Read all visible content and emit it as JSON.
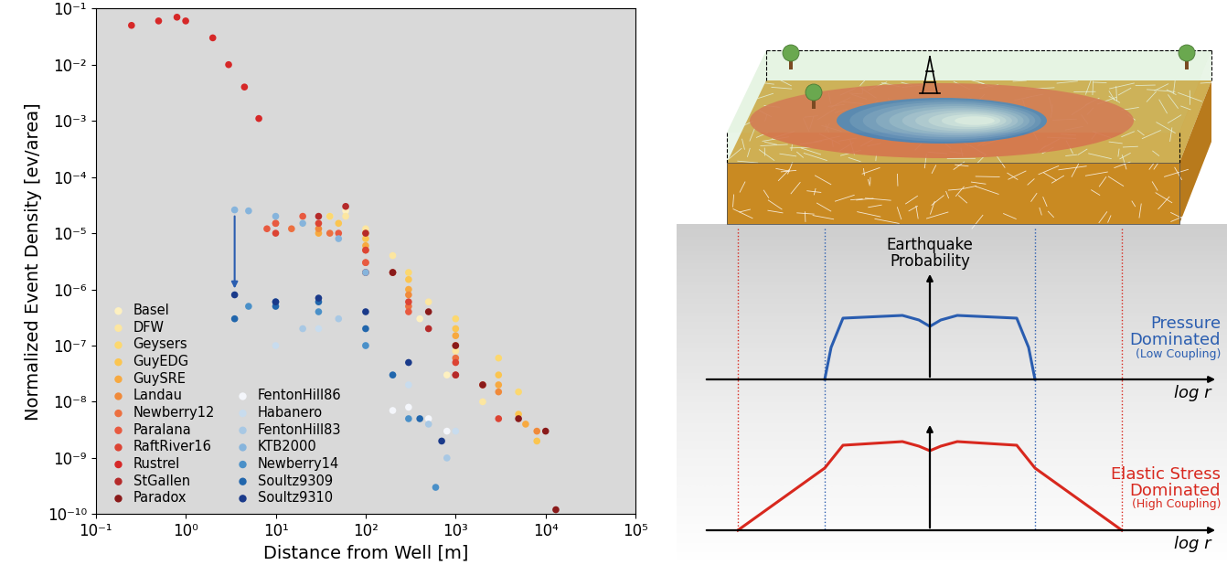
{
  "chart_data": {
    "type": "scatter",
    "x_label": "Distance from Well [m]",
    "y_label": "Normalized Event Density [ev/area]",
    "log": true,
    "xlim": [
      0.1,
      100000
    ],
    "ylim": [
      1e-10,
      0.1
    ],
    "xticks": [
      {
        "value": 0.1,
        "label": "10⁻¹"
      },
      {
        "value": 1,
        "label": "10⁰"
      },
      {
        "value": 10,
        "label": "10¹"
      },
      {
        "value": 100,
        "label": "10²"
      },
      {
        "value": 1000,
        "label": "10³"
      },
      {
        "value": 10000,
        "label": "10⁴"
      },
      {
        "value": 100000,
        "label": "10⁵"
      }
    ],
    "yticks": [
      {
        "value": 1e-10,
        "label": "10⁻¹⁰"
      },
      {
        "value": 1e-09,
        "label": "10⁻⁹"
      },
      {
        "value": 1e-08,
        "label": "10⁻⁸"
      },
      {
        "value": 1e-07,
        "label": "10⁻⁷"
      },
      {
        "value": 1e-06,
        "label": "10⁻⁶"
      },
      {
        "value": 1e-05,
        "label": "10⁻⁵"
      },
      {
        "value": 0.0001,
        "label": "10⁻⁴"
      },
      {
        "value": 0.001,
        "label": "10⁻³"
      },
      {
        "value": 0.01,
        "label": "10⁻²"
      },
      {
        "value": 0.1,
        "label": "10⁻¹"
      }
    ],
    "legend": "lower left",
    "marker": "circle",
    "series": [
      {
        "name": "Basel",
        "color": "#fdf0c0",
        "x": [
          20,
          40,
          60,
          100,
          200,
          400,
          800
        ],
        "y": [
          1.5e-05,
          2e-05,
          2.5e-05,
          1e-05,
          2e-06,
          3e-07,
          3e-08
        ]
      },
      {
        "name": "DFW",
        "color": "#fce6a0",
        "x": [
          30,
          60,
          100,
          200,
          500,
          1000,
          2000
        ],
        "y": [
          1e-05,
          2e-05,
          1.2e-05,
          4e-06,
          6e-07,
          8e-08,
          1e-08
        ]
      },
      {
        "name": "Geysers",
        "color": "#fcd870",
        "x": [
          40,
          100,
          300,
          1000,
          3000,
          5000
        ],
        "y": [
          2e-05,
          1e-05,
          2e-06,
          3e-07,
          6e-08,
          1.5e-08
        ]
      },
      {
        "name": "GuyEDG",
        "color": "#fbc550",
        "x": [
          50,
          100,
          300,
          1000,
          3000,
          5000,
          8000
        ],
        "y": [
          1.5e-05,
          8e-06,
          1.5e-06,
          2e-07,
          3e-08,
          6e-09,
          2e-09
        ]
      },
      {
        "name": "GuySRE",
        "color": "#f7a940",
        "x": [
          30,
          100,
          300,
          1000,
          3000,
          6000
        ],
        "y": [
          1e-05,
          6e-06,
          1e-06,
          1.5e-07,
          2e-08,
          4e-09
        ]
      },
      {
        "name": "Landau",
        "color": "#f08a3a",
        "x": [
          10,
          30,
          100,
          300,
          1000,
          3000,
          8000
        ],
        "y": [
          1.5e-05,
          1.2e-05,
          5e-06,
          8e-07,
          1e-07,
          1.5e-08,
          3e-09
        ]
      },
      {
        "name": "Newberry12",
        "color": "#ec7040",
        "x": [
          15,
          40,
          100,
          300,
          1000,
          2000
        ],
        "y": [
          1.2e-05,
          1e-05,
          3e-06,
          5e-07,
          6e-08,
          2e-08
        ]
      },
      {
        "name": "Paralana",
        "color": "#e85a40",
        "x": [
          8,
          10,
          20,
          50,
          100,
          300,
          1000
        ],
        "y": [
          1.2e-05,
          1.5e-05,
          2e-05,
          1e-05,
          3e-06,
          4e-07,
          3e-08
        ]
      },
      {
        "name": "RaftRiver16",
        "color": "#dc4434",
        "x": [
          10,
          30,
          100,
          300,
          1000,
          3000
        ],
        "y": [
          1e-05,
          1.5e-05,
          5e-06,
          6e-07,
          5e-08,
          5e-09
        ]
      },
      {
        "name": "Rustrel",
        "color": "#d62828",
        "x": [
          0.25,
          0.5,
          0.8,
          1.0,
          2,
          3,
          4.5,
          6.5
        ],
        "y": [
          0.05,
          0.06,
          0.07,
          0.06,
          0.03,
          0.01,
          0.004,
          0.0011
        ]
      },
      {
        "name": "StGallen",
        "color": "#b52a2a",
        "x": [
          30,
          60,
          100,
          200,
          500,
          1000
        ],
        "y": [
          2e-05,
          3e-05,
          1e-05,
          2e-06,
          2e-07,
          3e-08
        ]
      },
      {
        "name": "Paradox",
        "color": "#8a1a1a",
        "x": [
          100,
          200,
          500,
          1000,
          2000,
          5000,
          10000,
          13000
        ],
        "y": [
          2e-06,
          2e-06,
          4e-07,
          1e-07,
          2e-08,
          5e-09,
          3e-09,
          1.2e-10
        ]
      },
      {
        "name": "FentonHill86",
        "color": "#f4f6fb",
        "x": [
          200,
          300,
          500,
          800
        ],
        "y": [
          7e-09,
          8e-09,
          5e-09,
          3e-09
        ]
      },
      {
        "name": "Habanero",
        "color": "#c8dcee",
        "x": [
          10,
          30,
          100,
          300,
          1000
        ],
        "y": [
          1e-07,
          2e-07,
          1e-07,
          2e-08,
          3e-09
        ]
      },
      {
        "name": "FentonHill83",
        "color": "#a8c8e4",
        "x": [
          20,
          50,
          100,
          200,
          500,
          800
        ],
        "y": [
          2e-07,
          3e-07,
          1e-07,
          3e-08,
          4e-09,
          1e-09
        ]
      },
      {
        "name": "KTB2000",
        "color": "#86b4dc",
        "x": [
          3.5,
          5,
          10,
          20,
          50,
          100
        ],
        "y": [
          2.6e-05,
          2.5e-05,
          2e-05,
          1.5e-05,
          8e-06,
          2e-06
        ]
      },
      {
        "name": "Newberry14",
        "color": "#4a90c8",
        "x": [
          5,
          10,
          30,
          100,
          300,
          600
        ],
        "y": [
          5e-07,
          6e-07,
          4e-07,
          1e-07,
          5e-09,
          3e-10
        ]
      },
      {
        "name": "Soultz9309",
        "color": "#2166ac",
        "x": [
          3.5,
          10,
          30,
          100,
          200,
          400
        ],
        "y": [
          3e-07,
          5e-07,
          6e-07,
          2e-07,
          3e-08,
          5e-09
        ]
      },
      {
        "name": "Soultz9310",
        "color": "#1a3a8a",
        "x": [
          3.5,
          10,
          30,
          100,
          300,
          700
        ],
        "y": [
          8e-07,
          6e-07,
          7e-07,
          4e-07,
          5e-08,
          2e-09
        ]
      }
    ],
    "arrows": [
      {
        "x": 3.5,
        "y_from": 2.6e-05,
        "y_to": 8e-07,
        "color": "#2a5db0"
      }
    ]
  },
  "diagram": {
    "axis_title": "Earthquake\nProbability",
    "axis_label": "log r",
    "panels": [
      {
        "title": "Pressure\nDominated",
        "subtitle": "(Low Coupling)",
        "color": "#2a5db0"
      },
      {
        "title": "Elastic Stress\nDominated",
        "subtitle": "(High Coupling)",
        "color": "#d8281e"
      }
    ]
  }
}
